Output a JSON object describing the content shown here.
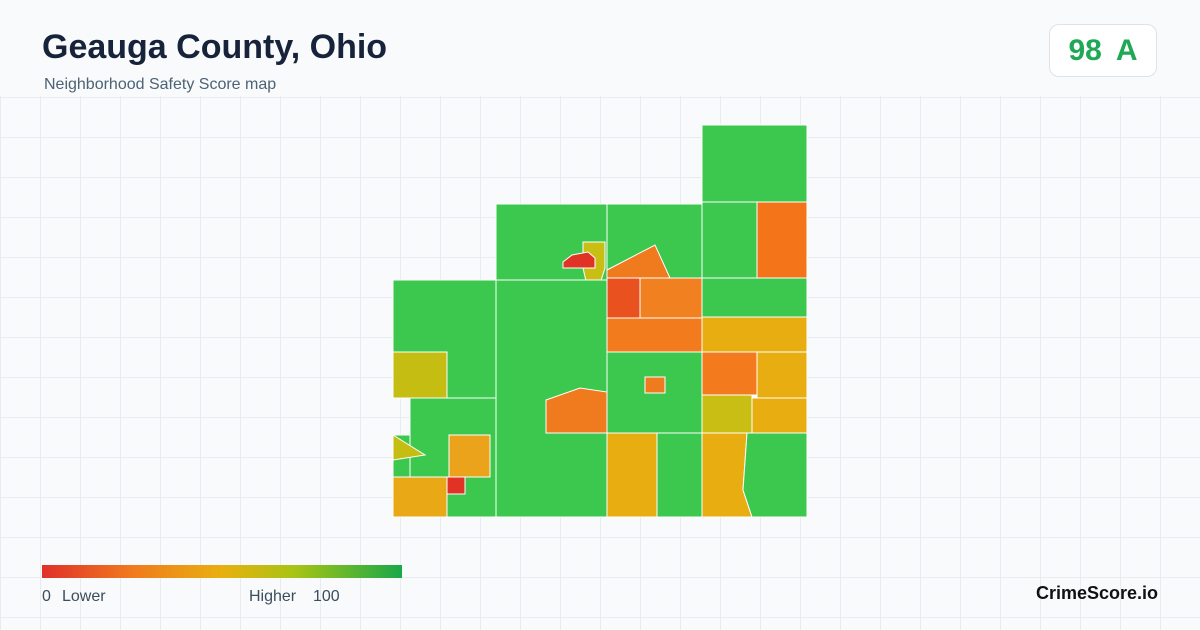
{
  "header": {
    "title": "Geauga County, Ohio",
    "subtitle": "Neighborhood Safety Score map"
  },
  "badge": {
    "score": "98",
    "grade": "A"
  },
  "legend": {
    "min": "0",
    "low_label": "Lower",
    "high_label": "Higher",
    "max": "100"
  },
  "footer": {
    "brand": "CrimeScore.io"
  }
}
